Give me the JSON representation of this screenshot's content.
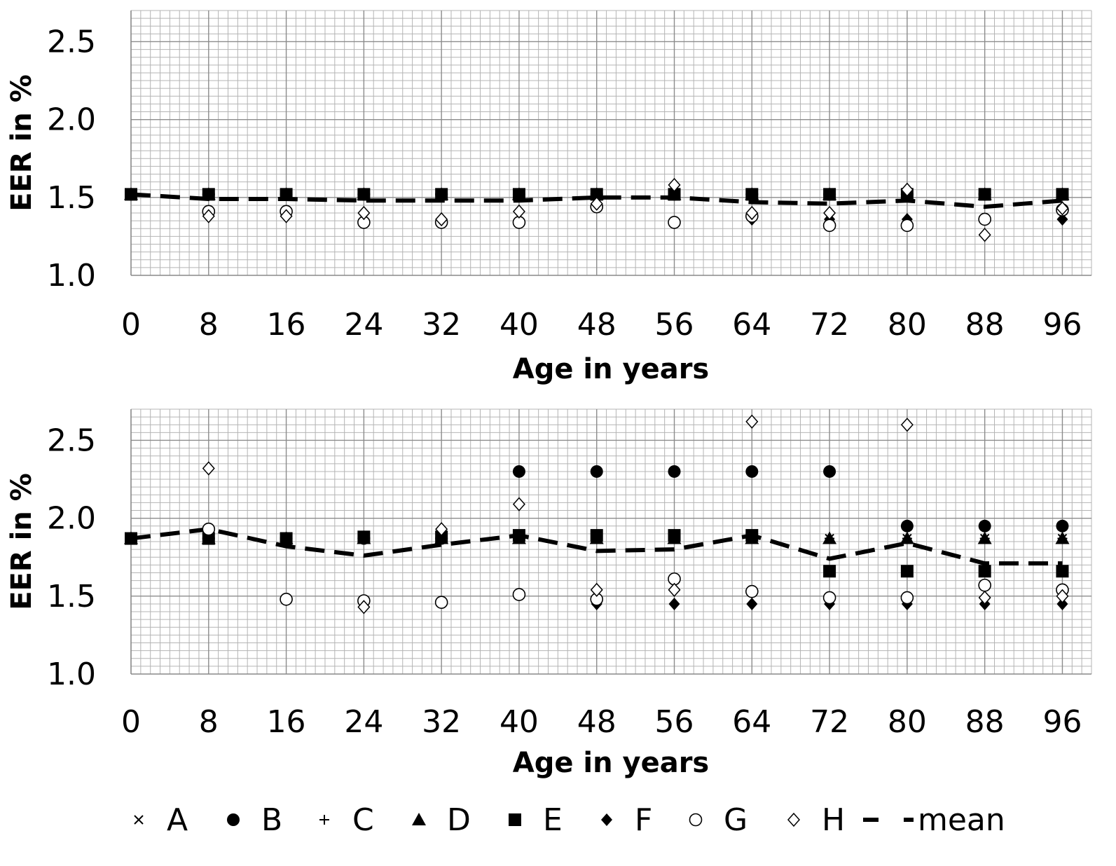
{
  "chart_data": [
    {
      "type": "scatter",
      "xlabel": "Age in years",
      "ylabel": "EER in %",
      "xlim": [
        0,
        99
      ],
      "ylim": [
        1.0,
        2.7
      ],
      "x_ticks": [
        "0",
        "8",
        "16",
        "24",
        "32",
        "40",
        "48",
        "56",
        "64",
        "72",
        "80",
        "88",
        "96"
      ],
      "y_ticks": [
        "1.0",
        "1.5",
        "2.0",
        "2.5"
      ],
      "grid": true,
      "x": [
        0,
        8,
        16,
        24,
        32,
        40,
        48,
        56,
        64,
        72,
        80,
        88,
        96
      ],
      "series": [
        {
          "name": "A",
          "values": [
            1.52,
            1.52,
            1.52,
            1.52,
            1.52,
            1.52,
            1.52,
            1.52,
            1.52,
            1.52,
            1.52,
            1.52,
            1.52
          ]
        },
        {
          "name": "B",
          "values": [
            1.52,
            1.52,
            1.52,
            1.52,
            1.52,
            1.52,
            1.52,
            1.52,
            1.52,
            1.52,
            1.52,
            1.52,
            1.52
          ]
        },
        {
          "name": "C",
          "values": [
            1.52,
            1.52,
            1.52,
            1.52,
            1.52,
            1.52,
            1.52,
            1.52,
            1.52,
            1.52,
            1.52,
            1.52,
            1.52
          ]
        },
        {
          "name": "D",
          "values": [
            1.52,
            1.52,
            1.52,
            1.52,
            1.52,
            1.52,
            1.52,
            1.52,
            1.52,
            1.52,
            1.52,
            1.52,
            1.52
          ]
        },
        {
          "name": "E",
          "values": [
            1.52,
            1.52,
            1.52,
            1.52,
            1.52,
            1.52,
            1.52,
            1.52,
            1.52,
            1.52,
            1.52,
            1.52,
            1.52
          ]
        },
        {
          "name": "F",
          "values": [
            null,
            null,
            null,
            null,
            null,
            null,
            null,
            null,
            1.36,
            1.36,
            1.36,
            1.36,
            1.36
          ]
        },
        {
          "name": "G",
          "values": [
            null,
            1.41,
            1.41,
            1.34,
            1.34,
            1.34,
            1.44,
            1.34,
            1.38,
            1.32,
            1.32,
            1.36,
            1.42
          ]
        },
        {
          "name": "H",
          "values": [
            null,
            1.38,
            1.38,
            1.4,
            1.36,
            1.41,
            1.46,
            1.58,
            1.4,
            1.4,
            1.55,
            1.26,
            1.43
          ]
        },
        {
          "name": "mean",
          "values": [
            1.52,
            1.49,
            1.49,
            1.48,
            1.48,
            1.48,
            1.5,
            1.5,
            1.47,
            1.46,
            1.48,
            1.44,
            1.48
          ]
        }
      ]
    },
    {
      "type": "scatter",
      "xlabel": "Age in years",
      "ylabel": "EER in %",
      "xlim": [
        0,
        99
      ],
      "ylim": [
        1.0,
        2.7
      ],
      "x_ticks": [
        "0",
        "8",
        "16",
        "24",
        "32",
        "40",
        "48",
        "56",
        "64",
        "72",
        "80",
        "88",
        "96"
      ],
      "y_ticks": [
        "1.0",
        "1.5",
        "2.0",
        "2.5"
      ],
      "grid": true,
      "x": [
        0,
        8,
        16,
        24,
        32,
        40,
        48,
        56,
        64,
        72,
        80,
        88,
        96
      ],
      "series": [
        {
          "name": "A",
          "values": [
            1.87,
            1.87,
            1.87,
            1.87,
            1.87,
            1.87,
            1.87,
            1.87,
            1.87,
            1.87,
            1.87,
            1.87,
            1.87
          ]
        },
        {
          "name": "B",
          "values": [
            1.87,
            1.87,
            1.87,
            1.87,
            1.87,
            2.3,
            2.3,
            2.3,
            2.3,
            2.3,
            1.95,
            1.95,
            1.95
          ]
        },
        {
          "name": "C",
          "values": [
            1.87,
            1.87,
            1.87,
            1.87,
            1.87,
            1.87,
            1.87,
            1.87,
            1.87,
            1.87,
            1.87,
            1.87,
            1.87
          ]
        },
        {
          "name": "D",
          "values": [
            1.87,
            1.87,
            1.87,
            1.87,
            1.87,
            1.87,
            1.87,
            1.87,
            1.87,
            1.87,
            1.87,
            1.87,
            1.87
          ]
        },
        {
          "name": "E",
          "values": [
            1.87,
            1.87,
            1.87,
            1.88,
            1.88,
            1.89,
            1.89,
            1.89,
            1.89,
            1.66,
            1.66,
            1.66,
            1.66
          ]
        },
        {
          "name": "F",
          "values": [
            null,
            null,
            null,
            null,
            null,
            null,
            1.45,
            1.45,
            1.45,
            1.45,
            1.45,
            1.45,
            1.45
          ]
        },
        {
          "name": "G",
          "values": [
            null,
            1.93,
            1.48,
            1.47,
            1.46,
            1.51,
            1.48,
            1.61,
            1.53,
            1.49,
            1.49,
            1.57,
            1.54
          ]
        },
        {
          "name": "H",
          "values": [
            null,
            2.32,
            null,
            1.43,
            1.93,
            2.09,
            1.54,
            1.54,
            2.62,
            null,
            2.6,
            1.49,
            1.5
          ]
        },
        {
          "name": "mean",
          "values": [
            1.87,
            1.93,
            1.82,
            1.76,
            1.83,
            1.89,
            1.79,
            1.8,
            1.89,
            1.74,
            1.84,
            1.71,
            1.71
          ]
        }
      ]
    }
  ],
  "legend": {
    "position": "bottom",
    "items": [
      {
        "label": "A",
        "marker": "x"
      },
      {
        "label": "B",
        "marker": "circle-filled"
      },
      {
        "label": "C",
        "marker": "plus"
      },
      {
        "label": "D",
        "marker": "triangle-filled"
      },
      {
        "label": "E",
        "marker": "square-filled"
      },
      {
        "label": "F",
        "marker": "diamond-filled"
      },
      {
        "label": "G",
        "marker": "circle-open"
      },
      {
        "label": "H",
        "marker": "diamond-open"
      },
      {
        "label": "mean",
        "marker": "dashed-line"
      }
    ]
  },
  "colors": {
    "marks": "#000000",
    "grid_major": "#8c8c8c",
    "grid_minor": "#b4b4b4"
  }
}
